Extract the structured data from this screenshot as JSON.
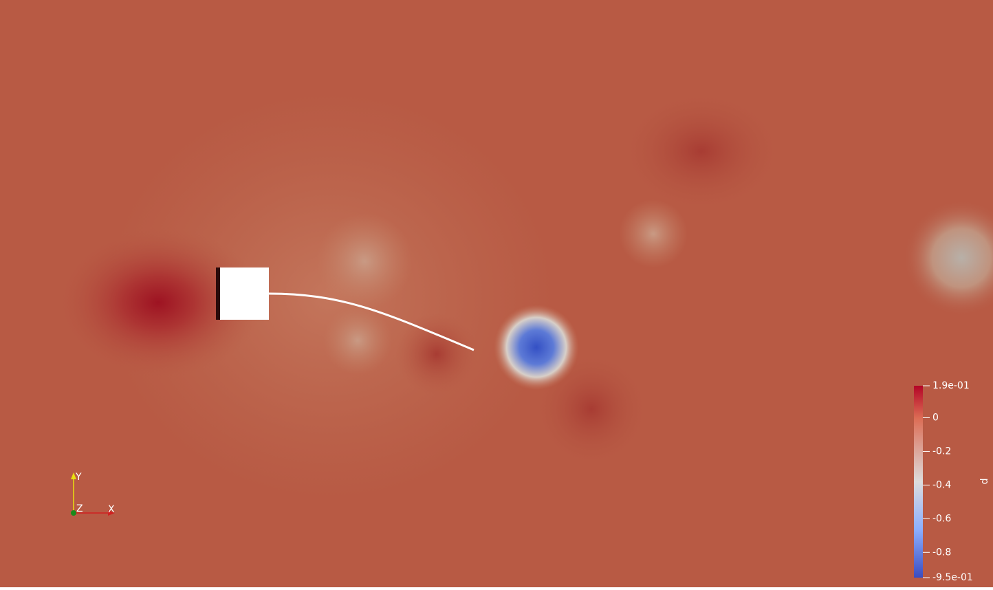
{
  "colorbar": {
    "title": "p",
    "range": [
      -0.95,
      0.19
    ],
    "ticks": [
      {
        "value": 0.19,
        "label": "1.9e-01"
      },
      0,
      -0.2,
      -0.4,
      -0.6,
      -0.8,
      {
        "value": -0.95,
        "label": "-9.5e-01"
      }
    ]
  },
  "axes_glyph": {
    "x": "X",
    "y": "Y",
    "z": "Z"
  }
}
